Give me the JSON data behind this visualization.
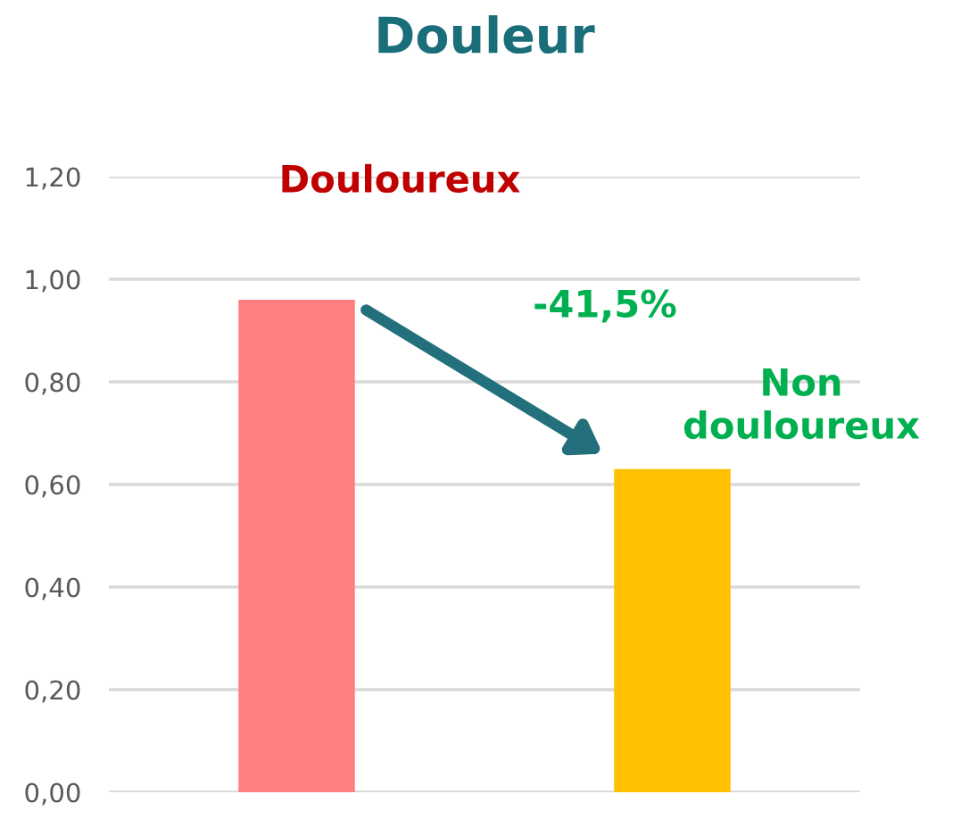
{
  "chart_data": {
    "type": "bar",
    "title": "Douleur",
    "categories": [
      "Douloureux",
      "Non\ndouloureux"
    ],
    "values": [
      0.96,
      0.63
    ],
    "colors": [
      "#ff7f7f",
      "#ffc000"
    ],
    "ylim": [
      0,
      1.2
    ],
    "yticks": [
      {
        "value": 0,
        "label": "0,00"
      },
      {
        "value": 0.2,
        "label": "0,20"
      },
      {
        "value": 0.4,
        "label": "0,40"
      },
      {
        "value": 0.6,
        "label": "0,60"
      },
      {
        "value": 0.8,
        "label": "0,80"
      },
      {
        "value": 1.0,
        "label": "1,00"
      },
      {
        "value": 1.2,
        "label": "1,20"
      }
    ],
    "grid": "y",
    "annotations": [
      "-41,5%"
    ]
  }
}
